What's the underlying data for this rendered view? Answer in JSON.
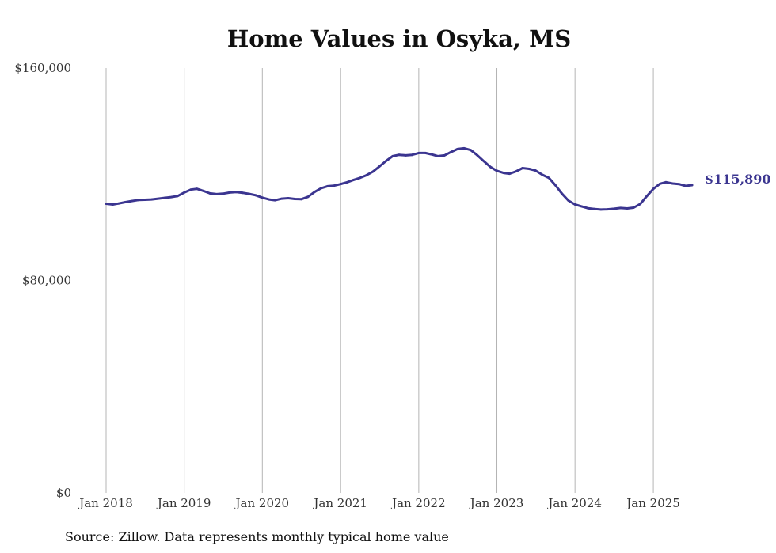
{
  "chart_data": {
    "type": "line",
    "title": "Home Values in Osyka, MS",
    "xlabel": "",
    "ylabel": "",
    "ylim": [
      0,
      160000
    ],
    "grid": "vertical",
    "y_ticks": [
      {
        "value": 0,
        "label": "$0"
      },
      {
        "value": 80000,
        "label": "$80,000"
      },
      {
        "value": 160000,
        "label": "$160,000"
      }
    ],
    "x_ticks": [
      {
        "value": "2018-01",
        "label": "Jan 2018"
      },
      {
        "value": "2019-01",
        "label": "Jan 2019"
      },
      {
        "value": "2020-01",
        "label": "Jan 2020"
      },
      {
        "value": "2021-01",
        "label": "Jan 2021"
      },
      {
        "value": "2022-01",
        "label": "Jan 2022"
      },
      {
        "value": "2023-01",
        "label": "Jan 2023"
      },
      {
        "value": "2024-01",
        "label": "Jan 2024"
      },
      {
        "value": "2025-01",
        "label": "Jan 2025"
      }
    ],
    "end_label": "$115,890",
    "series": [
      {
        "color": "#3b3590",
        "points": [
          [
            "2018-01",
            108900
          ],
          [
            "2018-02",
            108600
          ],
          [
            "2018-03",
            109000
          ],
          [
            "2018-04",
            109500
          ],
          [
            "2018-05",
            109900
          ],
          [
            "2018-06",
            110300
          ],
          [
            "2018-07",
            110400
          ],
          [
            "2018-08",
            110500
          ],
          [
            "2018-09",
            110800
          ],
          [
            "2018-10",
            111100
          ],
          [
            "2018-11",
            111400
          ],
          [
            "2018-12",
            111800
          ],
          [
            "2019-01",
            113100
          ],
          [
            "2019-02",
            114200
          ],
          [
            "2019-03",
            114500
          ],
          [
            "2019-04",
            113700
          ],
          [
            "2019-05",
            112800
          ],
          [
            "2019-06",
            112500
          ],
          [
            "2019-07",
            112700
          ],
          [
            "2019-08",
            113100
          ],
          [
            "2019-09",
            113300
          ],
          [
            "2019-10",
            113000
          ],
          [
            "2019-11",
            112600
          ],
          [
            "2019-12",
            112100
          ],
          [
            "2020-01",
            111200
          ],
          [
            "2020-02",
            110500
          ],
          [
            "2020-03",
            110200
          ],
          [
            "2020-04",
            110800
          ],
          [
            "2020-05",
            111000
          ],
          [
            "2020-06",
            110700
          ],
          [
            "2020-07",
            110600
          ],
          [
            "2020-08",
            111500
          ],
          [
            "2020-09",
            113300
          ],
          [
            "2020-10",
            114700
          ],
          [
            "2020-11",
            115500
          ],
          [
            "2020-12",
            115700
          ],
          [
            "2021-01",
            116300
          ],
          [
            "2021-02",
            117000
          ],
          [
            "2021-03",
            117800
          ],
          [
            "2021-04",
            118600
          ],
          [
            "2021-05",
            119600
          ],
          [
            "2021-06",
            121000
          ],
          [
            "2021-07",
            122900
          ],
          [
            "2021-08",
            125000
          ],
          [
            "2021-09",
            126800
          ],
          [
            "2021-10",
            127300
          ],
          [
            "2021-11",
            127100
          ],
          [
            "2021-12",
            127300
          ],
          [
            "2022-01",
            128000
          ],
          [
            "2022-02",
            128000
          ],
          [
            "2022-03",
            127500
          ],
          [
            "2022-04",
            126800
          ],
          [
            "2022-05",
            127100
          ],
          [
            "2022-06",
            128400
          ],
          [
            "2022-07",
            129500
          ],
          [
            "2022-08",
            129800
          ],
          [
            "2022-09",
            129100
          ],
          [
            "2022-10",
            127200
          ],
          [
            "2022-11",
            124900
          ],
          [
            "2022-12",
            122800
          ],
          [
            "2023-01",
            121300
          ],
          [
            "2023-02",
            120500
          ],
          [
            "2023-03",
            120200
          ],
          [
            "2023-04",
            121100
          ],
          [
            "2023-05",
            122300
          ],
          [
            "2023-06",
            122000
          ],
          [
            "2023-07",
            121400
          ],
          [
            "2023-08",
            119800
          ],
          [
            "2023-09",
            118600
          ],
          [
            "2023-10",
            115900
          ],
          [
            "2023-11",
            112700
          ],
          [
            "2023-12",
            110100
          ],
          [
            "2024-01",
            108600
          ],
          [
            "2024-02",
            107900
          ],
          [
            "2024-03",
            107200
          ],
          [
            "2024-04",
            106900
          ],
          [
            "2024-05",
            106700
          ],
          [
            "2024-06",
            106800
          ],
          [
            "2024-07",
            107000
          ],
          [
            "2024-08",
            107300
          ],
          [
            "2024-09",
            107100
          ],
          [
            "2024-10",
            107400
          ],
          [
            "2024-11",
            108800
          ],
          [
            "2024-12",
            111700
          ],
          [
            "2025-01",
            114500
          ],
          [
            "2025-02",
            116400
          ],
          [
            "2025-03",
            117000
          ],
          [
            "2025-04",
            116500
          ],
          [
            "2025-05",
            116300
          ],
          [
            "2025-06",
            115600
          ],
          [
            "2025-07",
            115890
          ]
        ]
      }
    ]
  },
  "source_note": "Source: Zillow. Data represents monthly typical home value"
}
